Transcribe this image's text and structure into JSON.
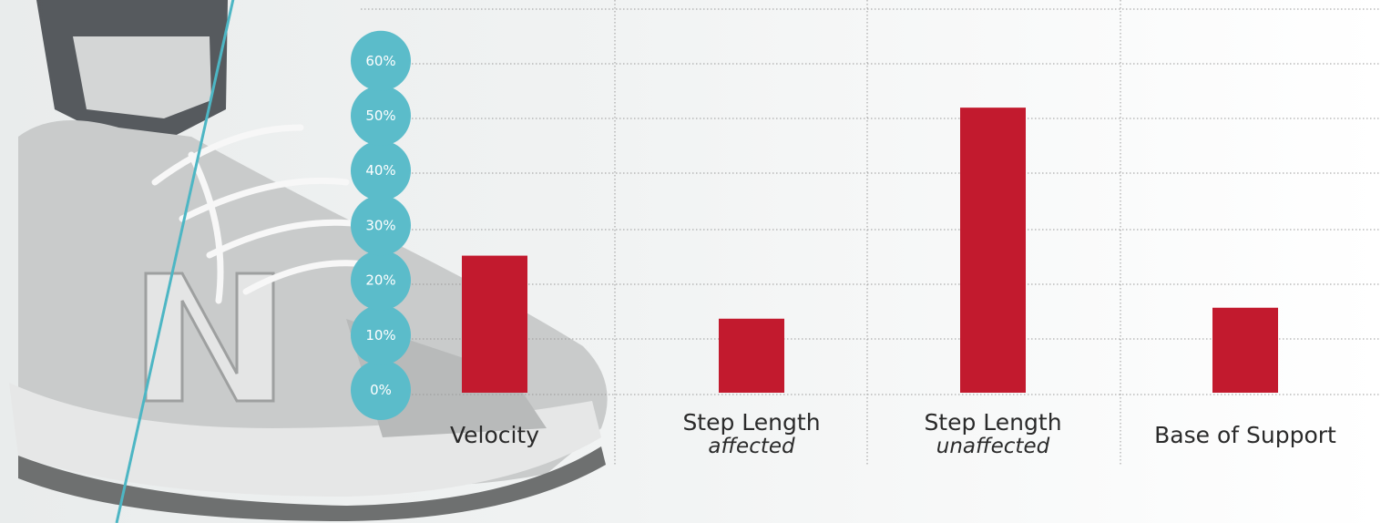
{
  "colors": {
    "bar": "#c21a2e",
    "tick_badge": "#5bbcca",
    "accent_line": "#4db6c4",
    "grid": "#9a9a9a"
  },
  "chart_data": {
    "type": "bar",
    "categories": [
      "Velocity",
      "Step Length affected",
      "Step Length unaffected",
      "Base of Support"
    ],
    "category_labels": [
      {
        "main": "Velocity",
        "sub": ""
      },
      {
        "main": "Step Length",
        "sub": "affected"
      },
      {
        "main": "Step Length",
        "sub": "unaffected"
      },
      {
        "main": "Base of Support",
        "sub": ""
      }
    ],
    "values": [
      25,
      13.5,
      52,
      15.5
    ],
    "yticks": [
      "0%",
      "10%",
      "20%",
      "30%",
      "40%",
      "50%",
      "60%"
    ],
    "ylim": [
      0,
      60
    ],
    "ylabel": "",
    "xlabel": "",
    "title": "",
    "grid": true
  }
}
